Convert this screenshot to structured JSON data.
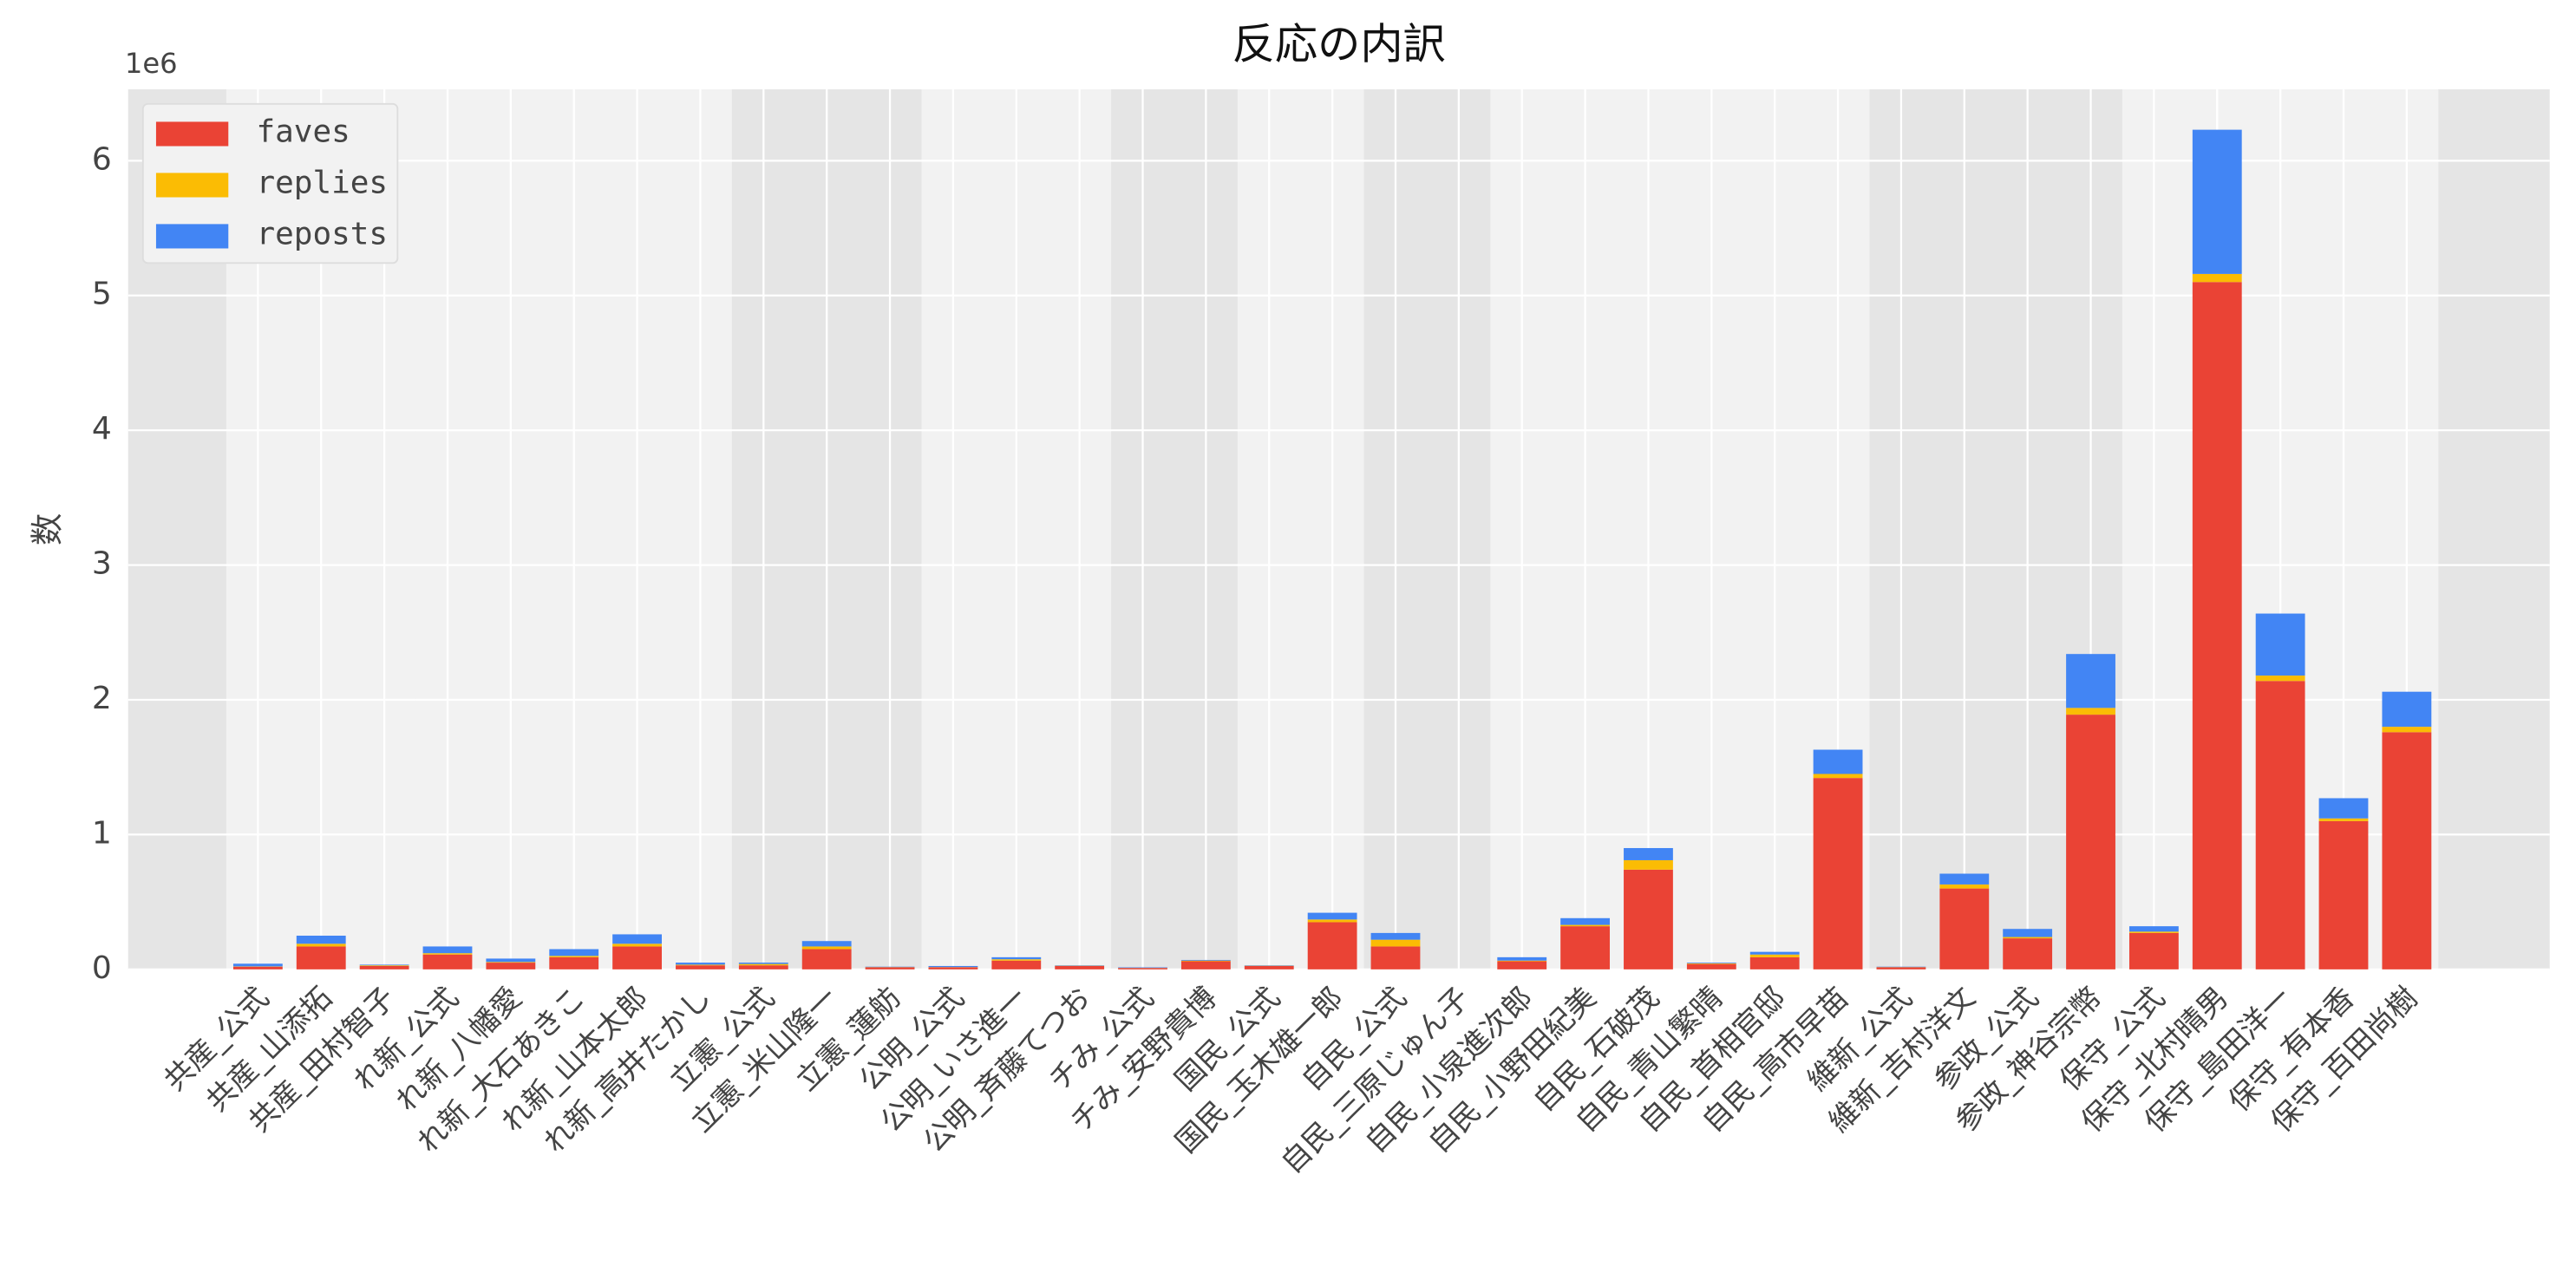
{
  "chart_data": {
    "type": "stacked_bar",
    "title": "反応の内訳",
    "ylabel": "数",
    "y_offset_label": "1e6",
    "categories": [
      "共産_公式",
      "共産_山添拓",
      "共産_田村智子",
      "れ新_公式",
      "れ新_八幡愛",
      "れ新_大石あきこ",
      "れ新_山本太郎",
      "れ新_高井たかし",
      "立憲_公式",
      "立憲_米山隆一",
      "立憲_蓮舫",
      "公明_公式",
      "公明_いさ進一",
      "公明_斉藤てつお",
      "チみ_公式",
      "チみ_安野貴博",
      "国民_公式",
      "国民_玉木雄一郎",
      "自民_公式",
      "自民_三原じゅん子",
      "自民_小泉進次郎",
      "自民_小野田紀美",
      "自民_石破茂",
      "自民_青山繁晴",
      "自民_首相官邸",
      "自民_高市早苗",
      "維新_公式",
      "維新_吉村洋文",
      "参政_公式",
      "参政_神谷宗幣",
      "保守_公式",
      "保守_北村晴男",
      "保守_島田洋一",
      "保守_有本香",
      "保守_百田尚樹"
    ],
    "series": [
      {
        "name": "faves",
        "color": "#ea4335",
        "values": [
          20000,
          170000,
          25000,
          110000,
          50000,
          90000,
          170000,
          30000,
          30000,
          150000,
          15000,
          15000,
          65000,
          25000,
          10000,
          60000,
          25000,
          350000,
          170000,
          0,
          60000,
          320000,
          740000,
          40000,
          90000,
          1420000,
          15000,
          600000,
          230000,
          1890000,
          270000,
          5100000,
          2140000,
          1100000,
          1760000
        ]
      },
      {
        "name": "replies",
        "color": "#fbbc04",
        "values": [
          2000,
          20000,
          5000,
          10000,
          5000,
          10000,
          20000,
          5000,
          10000,
          20000,
          2000,
          2000,
          10000,
          2000,
          1000,
          5000,
          2000,
          20000,
          50000,
          0,
          5000,
          10000,
          70000,
          5000,
          20000,
          30000,
          2000,
          30000,
          10000,
          50000,
          10000,
          60000,
          40000,
          20000,
          40000
        ]
      },
      {
        "name": "reposts",
        "color": "#4285f4",
        "values": [
          20000,
          60000,
          5000,
          50000,
          25000,
          50000,
          70000,
          15000,
          10000,
          40000,
          3000,
          8000,
          15000,
          3000,
          4000,
          5000,
          3000,
          50000,
          50000,
          0,
          25000,
          50000,
          90000,
          5000,
          20000,
          180000,
          3000,
          80000,
          60000,
          400000,
          40000,
          1070000,
          460000,
          150000,
          260000
        ]
      }
    ],
    "ylim": [
      0,
      6530000
    ],
    "yticks": [
      {
        "value": 0,
        "label": "0"
      },
      {
        "value": 1000000,
        "label": "1"
      },
      {
        "value": 2000000,
        "label": "2"
      },
      {
        "value": 3000000,
        "label": "3"
      },
      {
        "value": 4000000,
        "label": "4"
      },
      {
        "value": 5000000,
        "label": "5"
      },
      {
        "value": 6000000,
        "label": "6"
      }
    ],
    "grid": true,
    "legend": "upper left"
  }
}
